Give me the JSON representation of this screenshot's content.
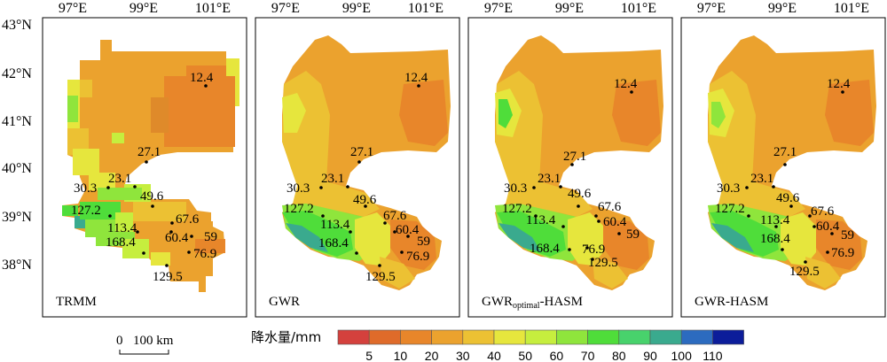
{
  "top_longitude_labels": [
    "97°E",
    "99°E",
    "101°E"
  ],
  "left_latitude_labels": [
    "43°N",
    "42°N",
    "41°N",
    "40°N",
    "39°N",
    "38°N"
  ],
  "panels": [
    {
      "title": "TRMM",
      "title_sub": "",
      "title_suffix": ""
    },
    {
      "title": "GWR",
      "title_sub": "",
      "title_suffix": ""
    },
    {
      "title": "GWR",
      "title_sub": "optimal",
      "title_suffix": "-HASM"
    },
    {
      "title": "GWR-HASM",
      "title_sub": "",
      "title_suffix": ""
    }
  ],
  "stations": [
    "12.4",
    "27.1",
    "30.3",
    "23.1",
    "49.6",
    "127.2",
    "113.4",
    "67.6",
    "60.4",
    "59",
    "168.4",
    "76.9",
    "129.5"
  ],
  "scale_bar": {
    "zero": "0",
    "distance": "100 km"
  },
  "legend": {
    "title": "降水量/mm",
    "tick_labels": [
      "5",
      "10",
      "20",
      "30",
      "40",
      "50",
      "60",
      "70",
      "80",
      "90",
      "100",
      "110"
    ],
    "colors": [
      "#d4413d",
      "#df6b2a",
      "#e8862a",
      "#eba22e",
      "#ecc133",
      "#e6e63d",
      "#c6ee3e",
      "#8fe53c",
      "#4fdd3a",
      "#48d26c",
      "#3aaa8e",
      "#2c6bbf",
      "#0c1d9a"
    ]
  }
}
